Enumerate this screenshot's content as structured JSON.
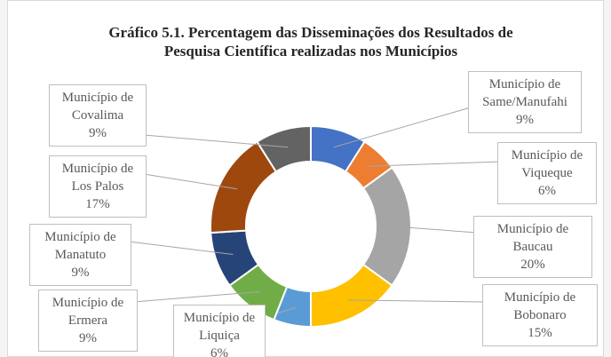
{
  "chart_data": {
    "type": "donut",
    "title": "Gráfico 5.1. Percentagem das Disseminações dos Resultados de Pesquisa Científica realizadas nos Municípios",
    "categories": [
      "Município de Same/Manufahi",
      "Município de Viqueque",
      "Município de Baucau",
      "Município de Bobonaro",
      "Município de Liquiça",
      "Município de Ermera",
      "Município de Manatuto",
      "Município de Los Palos",
      "Município de Covalima"
    ],
    "values": [
      9,
      6,
      20,
      15,
      6,
      9,
      9,
      17,
      9
    ],
    "value_labels": [
      "9%",
      "6%",
      "20%",
      "15%",
      "6%",
      "9%",
      "9%",
      "17%",
      "9%"
    ],
    "colors": [
      "#4472c4",
      "#ed7d31",
      "#a5a5a5",
      "#ffc000",
      "#5b9bd5",
      "#70ad47",
      "#264478",
      "#9e480e",
      "#636363"
    ]
  }
}
